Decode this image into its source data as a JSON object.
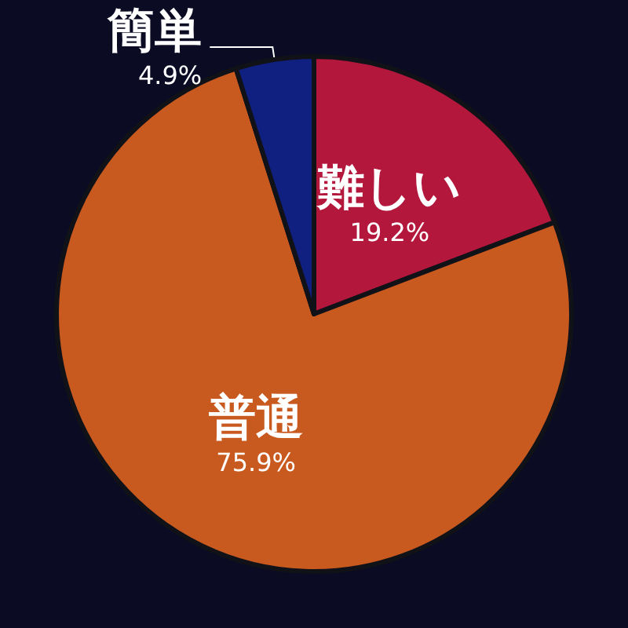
{
  "chart_data": {
    "type": "pie",
    "categories": [
      "難しい",
      "普通",
      "簡単"
    ],
    "values": [
      19.2,
      75.9,
      4.9
    ],
    "colors": [
      "#b3173c",
      "#c95a1f",
      "#0f2080"
    ],
    "value_labels": [
      "19.2%",
      "75.9%",
      "4.9%"
    ],
    "legend": false
  }
}
